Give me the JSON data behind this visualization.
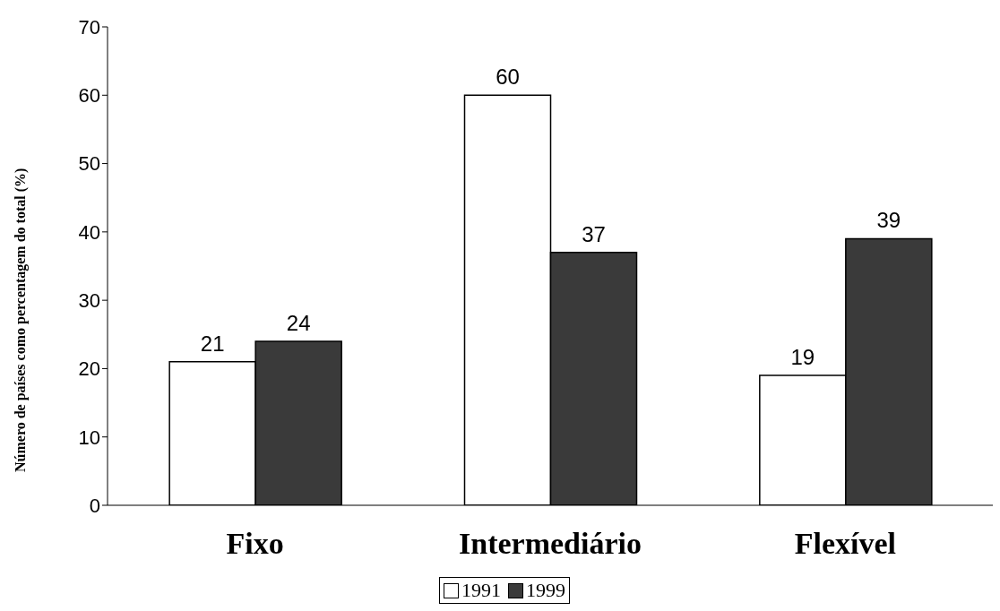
{
  "chart_data": {
    "type": "bar",
    "ylabel": "Número de países como percentagem do total (%)",
    "categories": [
      "Fixo",
      "Intermediário",
      "Flexível"
    ],
    "series": [
      {
        "name": "1991",
        "color": "#ffffff",
        "values": [
          21,
          60,
          19
        ]
      },
      {
        "name": "1999",
        "color": "#3a3a3a",
        "values": [
          24,
          37,
          39
        ]
      }
    ],
    "ylim": [
      0,
      70
    ],
    "yticks": [
      0,
      10,
      20,
      30,
      40,
      50,
      60,
      70
    ],
    "grid": false,
    "legend": "bottom",
    "data_labels": true
  }
}
